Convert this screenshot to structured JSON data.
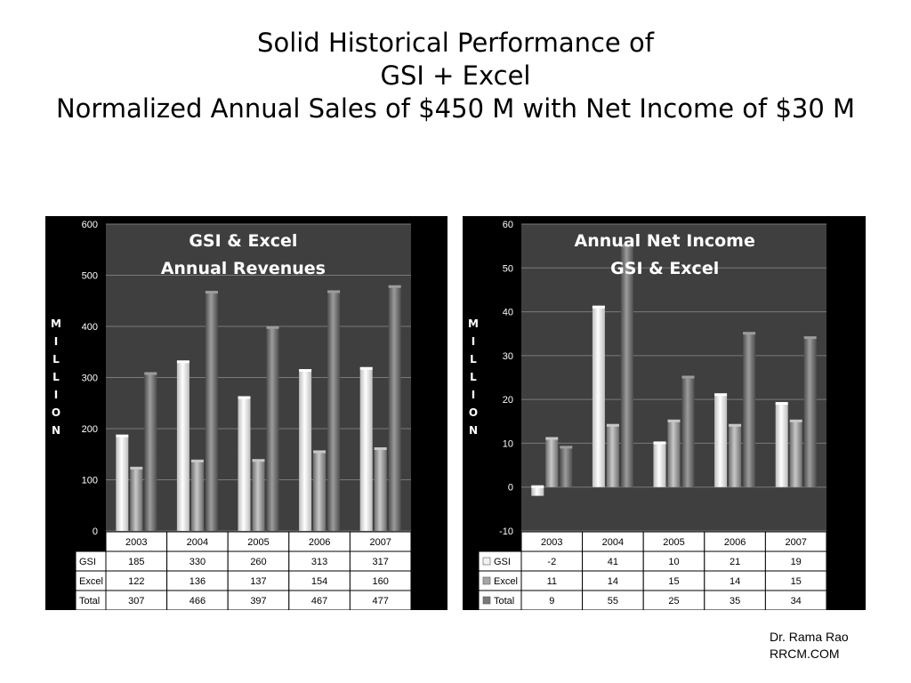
{
  "slide": {
    "title_line1": "Solid Historical Performance of",
    "title_line2": "GSI + Excel",
    "subtitle": "Normalized Annual Sales of $450 M with Net Income of $30 M",
    "footer_line1": "Dr. Rama Rao",
    "footer_line2": "RRCM.COM"
  },
  "colors": {
    "panel": "#000000",
    "plot_area": "#3f3f3f",
    "gsi": "#f2f2f2",
    "excel": "#a6a6a6",
    "total": "#7a7a7a"
  },
  "chart_data": [
    {
      "type": "bar",
      "title": "GSI & Excel Annual Revenues",
      "title_lines": [
        "GSI & Excel",
        "Annual Revenues"
      ],
      "ylabel": "MILLION",
      "ylim": [
        0,
        600
      ],
      "yticks": [
        0,
        100,
        200,
        300,
        400,
        500,
        600
      ],
      "categories": [
        "2003",
        "2004",
        "2005",
        "2006",
        "2007"
      ],
      "series": [
        {
          "name": "GSI",
          "values": [
            185,
            330,
            260,
            313,
            317
          ]
        },
        {
          "name": "Excel",
          "values": [
            122,
            136,
            137,
            154,
            160
          ]
        },
        {
          "name": "Total",
          "values": [
            307,
            466,
            397,
            467,
            477
          ]
        }
      ],
      "legend_keys": false,
      "data_table": true,
      "grid": true
    },
    {
      "type": "bar",
      "title": "Annual Net Income GSI & Excel",
      "title_lines": [
        "Annual Net Income",
        "GSI & Excel"
      ],
      "ylabel": "MILLION",
      "ylim": [
        -10,
        60
      ],
      "yticks": [
        -10,
        0,
        10,
        20,
        30,
        40,
        50,
        60
      ],
      "categories": [
        "2003",
        "2004",
        "2005",
        "2006",
        "2007"
      ],
      "series": [
        {
          "name": "GSI",
          "values": [
            -2,
            41,
            10,
            21,
            19
          ]
        },
        {
          "name": "Excel",
          "values": [
            11,
            14,
            15,
            14,
            15
          ]
        },
        {
          "name": "Total",
          "values": [
            9,
            55,
            25,
            35,
            34
          ]
        }
      ],
      "legend_keys": true,
      "data_table": true,
      "grid": true
    }
  ]
}
